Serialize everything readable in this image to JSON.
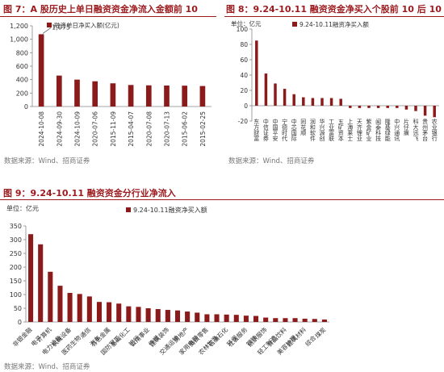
{
  "figures": [
    {
      "title": "图 7：A 股历史上单日融资资金净流入金额前 10",
      "source": "数据来源：Wind、招商证券"
    },
    {
      "title": "图 8：9.24-10.11 融资资金净买入个股前 10 后 10",
      "source": "数据来源：Wind、招商证券"
    },
    {
      "title": "图 9：9.24-10.11 融资资金分行业净流入",
      "source": "数据来源：Wind、招商证券"
    }
  ],
  "colors": {
    "bar": "#8b1a1a",
    "title": "#9b1a1e"
  },
  "chart_data": [
    {
      "type": "bar",
      "series": [
        {
          "name": "融资单日净买入额(亿元)",
          "values": [
            1075,
            460,
            400,
            375,
            345,
            320,
            315,
            312,
            310,
            305
          ]
        }
      ],
      "categories": [
        "2024-10-08",
        "2024-09-30",
        "2024-10-09",
        "2020-07-06",
        "2015-11-09",
        "2015-04-07",
        "2020-07-08",
        "2020-07-13",
        "2015-06-02",
        "2015-02-25"
      ],
      "annotation": "1,075",
      "ylim": [
        0,
        1200
      ],
      "yticks": [
        "0",
        "200",
        "400",
        "600",
        "800",
        "1,000",
        "1,200"
      ],
      "grid": false,
      "legend": "top-left"
    },
    {
      "type": "bar",
      "unit_label": "单位：亿元",
      "series": [
        {
          "name": "9.24-10.11融资净买入额",
          "values": [
            85,
            42,
            29,
            22,
            15,
            11,
            10,
            10,
            10,
            9,
            -3,
            -3,
            -3,
            -3,
            -3,
            -3,
            -5,
            -7,
            -13,
            -15
          ]
        }
      ],
      "categories": [
        "东方财富",
        "中信证券",
        "中国平安",
        "宁德时代",
        "中芯国际",
        "同花顺",
        "润和软件",
        "华兴源创",
        "工业富联",
        "五矿资本",
        "上海莱士",
        "天齐锂业",
        "紫金矿业",
        "闻泰科技",
        "隆基绿能",
        "中兴通讯",
        "片仔癀",
        "科大讯飞",
        "贵州茅台",
        "农业银行"
      ],
      "ylim": [
        -20,
        100
      ],
      "yticks": [
        "-20",
        "0",
        "20",
        "40",
        "60",
        "80",
        "100"
      ],
      "grid": false,
      "legend": "top"
    },
    {
      "type": "bar",
      "unit_label": "单位：亿元",
      "series": [
        {
          "name": "9.24-10.11融资净买入额",
          "values": [
            320,
            283,
            183,
            132,
            106,
            102,
            93,
            73,
            72,
            67,
            57,
            55,
            50,
            47,
            44,
            42,
            38,
            34,
            28,
            28,
            27,
            26,
            23,
            22,
            16,
            14,
            14,
            14,
            12,
            11,
            9
          ]
        }
      ],
      "categories": [
        "非银金融",
        "电子",
        "计算机",
        "电力设备",
        "机械设备",
        "医药生物",
        "通信",
        "汽车",
        "有色金属",
        "国防军工",
        "基础化工",
        "银行",
        "公用事业",
        "传媒",
        "建筑装饰",
        "交通运输",
        "房地产",
        "家用电器",
        "商贸零售",
        "农林牧渔",
        "石油石化",
        "环保",
        "社会服务",
        "钢铁",
        "纺织服饰",
        "轻工制造",
        "食品饮料",
        "美容护理",
        "建筑材料",
        "综合",
        "煤炭"
      ],
      "ylim": [
        0,
        350
      ],
      "yticks": [
        "0",
        "50",
        "100",
        "150",
        "200",
        "250",
        "300",
        "350"
      ],
      "grid": false,
      "legend": "top"
    }
  ]
}
